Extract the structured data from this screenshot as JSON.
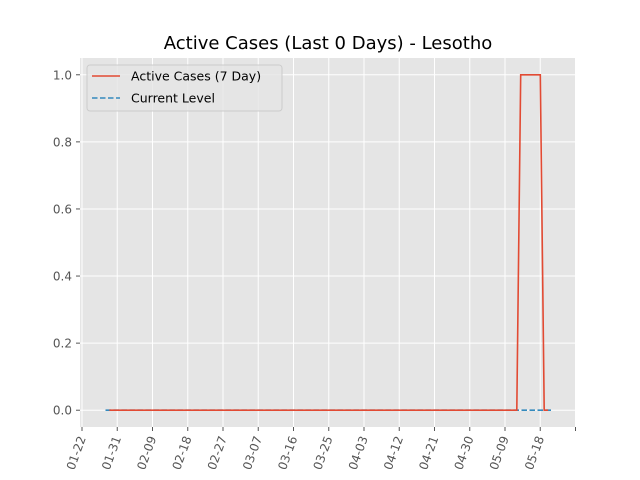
{
  "chart_data": {
    "type": "line",
    "title": "Active Cases (Last 0 Days) - Lesotho",
    "xlabel": "",
    "ylabel": "",
    "x_ticks": [
      "01-22",
      "01-31",
      "02-09",
      "02-18",
      "02-27",
      "03-07",
      "03-16",
      "03-25",
      "04-03",
      "04-12",
      "04-21",
      "04-30",
      "05-09",
      "05-18",
      ""
    ],
    "ylim": [
      -0.05,
      1.05
    ],
    "y_ticks": [
      "0.0",
      "0.2",
      "0.4",
      "0.6",
      "0.8",
      "1.0"
    ],
    "grid": true,
    "legend_position": "top-left",
    "series": [
      {
        "name": "Active Cases (7 Day)",
        "color": "#e24a33",
        "style": "solid",
        "points": [
          {
            "x": "01-29",
            "y": 0
          },
          {
            "x": "05-12",
            "y": 0
          },
          {
            "x": "05-13",
            "y": 1
          },
          {
            "x": "05-18",
            "y": 1
          },
          {
            "x": "05-19",
            "y": 0
          },
          {
            "x": "05-20",
            "y": 0
          }
        ]
      },
      {
        "name": "Current Level",
        "color": "#348abd",
        "style": "dashed",
        "points": [
          {
            "x": "01-28",
            "y": 0
          },
          {
            "x": "05-21",
            "y": 0
          }
        ]
      }
    ]
  }
}
